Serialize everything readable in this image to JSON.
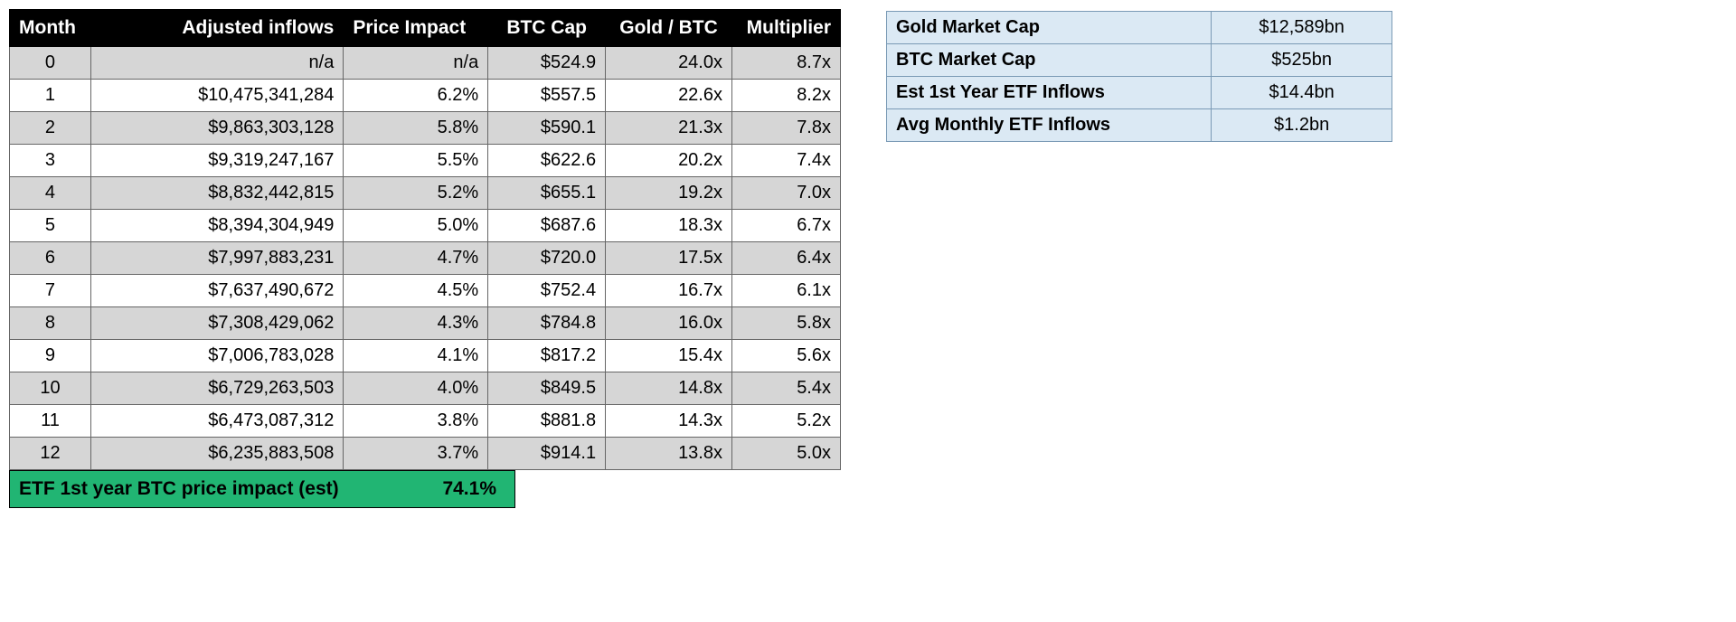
{
  "colors": {
    "header_bg": "#000000",
    "header_text": "#ffffff",
    "row_even_bg": "#d6d6d6",
    "row_odd_bg": "#ffffff",
    "border": "#666666",
    "summary_bg": "#21b573",
    "side_bg": "#dbe9f4",
    "side_border": "#7a9ab5"
  },
  "main_table": {
    "type": "table",
    "columns": [
      "Month",
      "Adjusted inflows",
      "Price Impact",
      "BTC Cap",
      "Gold / BTC",
      "Multiplier"
    ],
    "rows": [
      {
        "month": "0",
        "inflows": "n/a",
        "impact": "n/a",
        "cap": "$524.9",
        "gold": "24.0x",
        "mult": "8.7x"
      },
      {
        "month": "1",
        "inflows": "$10,475,341,284",
        "impact": "6.2%",
        "cap": "$557.5",
        "gold": "22.6x",
        "mult": "8.2x"
      },
      {
        "month": "2",
        "inflows": "$9,863,303,128",
        "impact": "5.8%",
        "cap": "$590.1",
        "gold": "21.3x",
        "mult": "7.8x"
      },
      {
        "month": "3",
        "inflows": "$9,319,247,167",
        "impact": "5.5%",
        "cap": "$622.6",
        "gold": "20.2x",
        "mult": "7.4x"
      },
      {
        "month": "4",
        "inflows": "$8,832,442,815",
        "impact": "5.2%",
        "cap": "$655.1",
        "gold": "19.2x",
        "mult": "7.0x"
      },
      {
        "month": "5",
        "inflows": "$8,394,304,949",
        "impact": "5.0%",
        "cap": "$687.6",
        "gold": "18.3x",
        "mult": "6.7x"
      },
      {
        "month": "6",
        "inflows": "$7,997,883,231",
        "impact": "4.7%",
        "cap": "$720.0",
        "gold": "17.5x",
        "mult": "6.4x"
      },
      {
        "month": "7",
        "inflows": "$7,637,490,672",
        "impact": "4.5%",
        "cap": "$752.4",
        "gold": "16.7x",
        "mult": "6.1x"
      },
      {
        "month": "8",
        "inflows": "$7,308,429,062",
        "impact": "4.3%",
        "cap": "$784.8",
        "gold": "16.0x",
        "mult": "5.8x"
      },
      {
        "month": "9",
        "inflows": "$7,006,783,028",
        "impact": "4.1%",
        "cap": "$817.2",
        "gold": "15.4x",
        "mult": "5.6x"
      },
      {
        "month": "10",
        "inflows": "$6,729,263,503",
        "impact": "4.0%",
        "cap": "$849.5",
        "gold": "14.8x",
        "mult": "5.4x"
      },
      {
        "month": "11",
        "inflows": "$6,473,087,312",
        "impact": "3.8%",
        "cap": "$881.8",
        "gold": "14.3x",
        "mult": "5.2x"
      },
      {
        "month": "12",
        "inflows": "$6,235,883,508",
        "impact": "3.7%",
        "cap": "$914.1",
        "gold": "13.8x",
        "mult": "5.0x"
      }
    ]
  },
  "summary": {
    "label": "ETF 1st year BTC price impact (est)",
    "value": "74.1%"
  },
  "side_table": {
    "type": "table",
    "rows": [
      {
        "k": "Gold Market Cap",
        "v": "$12,589bn"
      },
      {
        "k": "BTC Market Cap",
        "v": "$525bn"
      },
      {
        "k": "Est 1st Year ETF Inflows",
        "v": "$14.4bn"
      },
      {
        "k": "Avg Monthly ETF Inflows",
        "v": "$1.2bn"
      }
    ]
  }
}
